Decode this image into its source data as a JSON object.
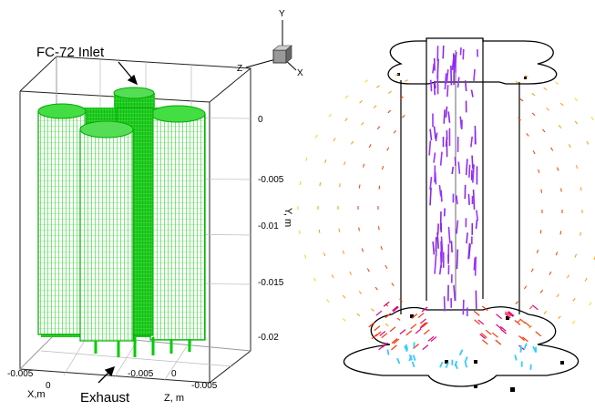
{
  "left_panel": {
    "inlet_label": "FC-72 Inlet",
    "exhaust_label": "Exhaust",
    "axis_y_title": "Y, m",
    "axis_x_title": "X,m",
    "axis_z_title": "Z, m",
    "y_ticks": [
      "0",
      "-0.005",
      "-0.01",
      "-0.015",
      "-0.02"
    ],
    "x_ticks": [
      "-0.005",
      "0"
    ],
    "z_ticks": [
      "-0.005",
      "0",
      "-0.005"
    ],
    "mesh_color": "#00dd00"
  },
  "triad": {
    "y": "Y",
    "z": "Z",
    "x": "X"
  },
  "right_panel": {
    "vector_colors": [
      "#ffd400",
      "#ff9a00",
      "#ff3300",
      "#e0007a",
      "#9933ff",
      "#8a2be2",
      "#33ccff"
    ]
  }
}
